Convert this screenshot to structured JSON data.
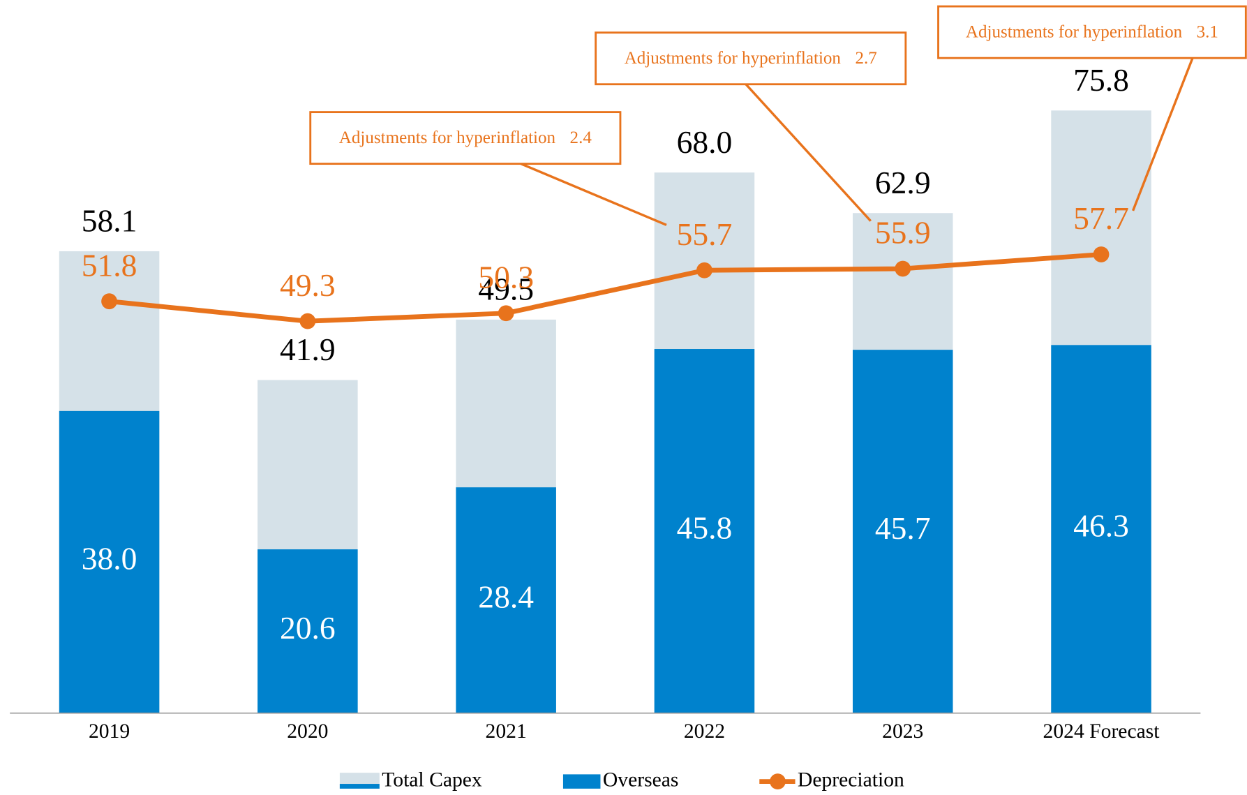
{
  "chart_data": {
    "type": "bar_line",
    "categories": [
      "2019",
      "2020",
      "2021",
      "2022",
      "2023",
      "2024 Forecast"
    ],
    "series": [
      {
        "name": "Total Capex",
        "color": "#d5e1e8",
        "values": [
          58.1,
          41.9,
          49.5,
          68.0,
          62.9,
          75.8
        ]
      },
      {
        "name": "Overseas",
        "color": "#0082cd",
        "values": [
          38.0,
          20.6,
          28.4,
          45.8,
          45.7,
          46.3
        ]
      },
      {
        "name": "Depreciation",
        "color": "#e8731c",
        "type": "line",
        "values": [
          51.8,
          49.3,
          50.3,
          55.7,
          55.9,
          57.7
        ]
      }
    ],
    "ylim": [
      0,
      90
    ],
    "annotations": [
      {
        "text": "Adjustments for hyperinflation",
        "value": 2.4
      },
      {
        "text": "Adjustments for hyperinflation",
        "value": 2.7
      },
      {
        "text": "Adjustments for hyperinflation",
        "value": 3.1
      }
    ],
    "legend": "bottom"
  }
}
